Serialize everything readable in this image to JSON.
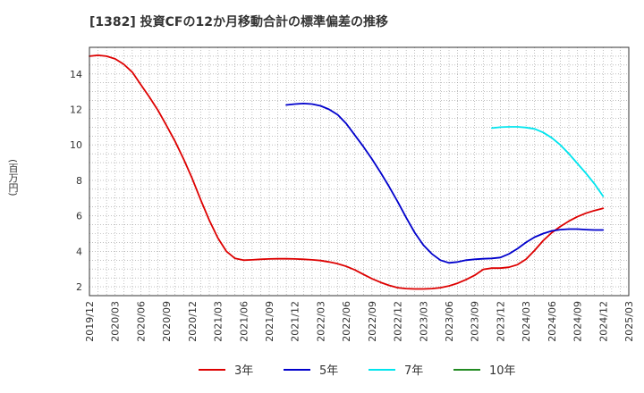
{
  "chart_data": {
    "type": "line",
    "title": "[1382]  投資CFの12か月移動合計の標準偏差の推移",
    "ylabel": "(百万円)",
    "xlabel": "",
    "ylim": [
      1.5,
      15.5
    ],
    "yticks": [
      2,
      4,
      6,
      8,
      10,
      12,
      14
    ],
    "xticks": [
      "2019/12",
      "2020/03",
      "2020/06",
      "2020/09",
      "2020/12",
      "2021/03",
      "2021/06",
      "2021/09",
      "2021/12",
      "2022/03",
      "2022/06",
      "2022/09",
      "2022/12",
      "2023/03",
      "2023/06",
      "2023/09",
      "2023/12",
      "2024/03",
      "2024/06",
      "2024/09",
      "2024/12",
      "2025/03"
    ],
    "grid": true,
    "legend_position": "bottom",
    "series": [
      {
        "name": "3年",
        "color": "#dd0000",
        "x": [
          "2019/12",
          "2020/01",
          "2020/02",
          "2020/03",
          "2020/04",
          "2020/05",
          "2020/06",
          "2020/07",
          "2020/08",
          "2020/09",
          "2020/10",
          "2020/11",
          "2020/12",
          "2021/01",
          "2021/02",
          "2021/03",
          "2021/04",
          "2021/05",
          "2021/06",
          "2021/07",
          "2021/08",
          "2021/09",
          "2021/10",
          "2021/11",
          "2021/12",
          "2022/01",
          "2022/02",
          "2022/03",
          "2022/04",
          "2022/05",
          "2022/06",
          "2022/07",
          "2022/08",
          "2022/09",
          "2022/10",
          "2022/11",
          "2022/12",
          "2023/01",
          "2023/02",
          "2023/03",
          "2023/04",
          "2023/05",
          "2023/06",
          "2023/07",
          "2023/08",
          "2023/09",
          "2023/10",
          "2023/11",
          "2023/12",
          "2024/01",
          "2024/02",
          "2024/03",
          "2024/04",
          "2024/05",
          "2024/06",
          "2024/07",
          "2024/08",
          "2024/09",
          "2024/10",
          "2024/11",
          "2024/12"
        ],
        "values": [
          15.0,
          15.05,
          15.0,
          14.85,
          14.55,
          14.1,
          13.4,
          12.7,
          11.95,
          11.1,
          10.2,
          9.2,
          8.1,
          6.9,
          5.75,
          4.75,
          4.0,
          3.6,
          3.5,
          3.52,
          3.55,
          3.57,
          3.58,
          3.58,
          3.57,
          3.55,
          3.52,
          3.48,
          3.4,
          3.3,
          3.15,
          2.95,
          2.7,
          2.45,
          2.25,
          2.08,
          1.95,
          1.9,
          1.88,
          1.88,
          1.9,
          1.95,
          2.05,
          2.2,
          2.4,
          2.65,
          2.98,
          3.05,
          3.05,
          3.1,
          3.25,
          3.55,
          4.05,
          4.6,
          5.05,
          5.4,
          5.7,
          5.95,
          6.15,
          6.3,
          6.42
        ]
      },
      {
        "name": "5年",
        "color": "#0000cc",
        "x": [
          "2021/11",
          "2021/12",
          "2022/01",
          "2022/02",
          "2022/03",
          "2022/04",
          "2022/05",
          "2022/06",
          "2022/07",
          "2022/08",
          "2022/09",
          "2022/10",
          "2022/11",
          "2022/12",
          "2023/01",
          "2023/02",
          "2023/03",
          "2023/04",
          "2023/05",
          "2023/06",
          "2023/07",
          "2023/08",
          "2023/09",
          "2023/10",
          "2023/11",
          "2023/12",
          "2024/01",
          "2024/02",
          "2024/03",
          "2024/04",
          "2024/05",
          "2024/06",
          "2024/07",
          "2024/08",
          "2024/09",
          "2024/10",
          "2024/11",
          "2024/12"
        ],
        "values": [
          12.25,
          12.3,
          12.33,
          12.3,
          12.2,
          12.0,
          11.7,
          11.2,
          10.55,
          9.9,
          9.2,
          8.45,
          7.65,
          6.8,
          5.9,
          5.05,
          4.35,
          3.85,
          3.5,
          3.35,
          3.4,
          3.5,
          3.55,
          3.58,
          3.6,
          3.65,
          3.85,
          4.15,
          4.5,
          4.8,
          5.0,
          5.15,
          5.22,
          5.25,
          5.25,
          5.22,
          5.2,
          5.2
        ]
      },
      {
        "name": "7年",
        "color": "#00e5ee",
        "x": [
          "2023/11",
          "2023/12",
          "2024/01",
          "2024/02",
          "2024/03",
          "2024/04",
          "2024/05",
          "2024/06",
          "2024/07",
          "2024/08",
          "2024/09",
          "2024/10",
          "2024/11",
          "2024/12"
        ],
        "values": [
          10.95,
          11.0,
          11.02,
          11.02,
          10.98,
          10.9,
          10.7,
          10.4,
          10.0,
          9.5,
          8.95,
          8.4,
          7.8,
          7.1
        ]
      },
      {
        "name": "10年",
        "color": "#228b22",
        "x": [],
        "values": []
      }
    ]
  }
}
